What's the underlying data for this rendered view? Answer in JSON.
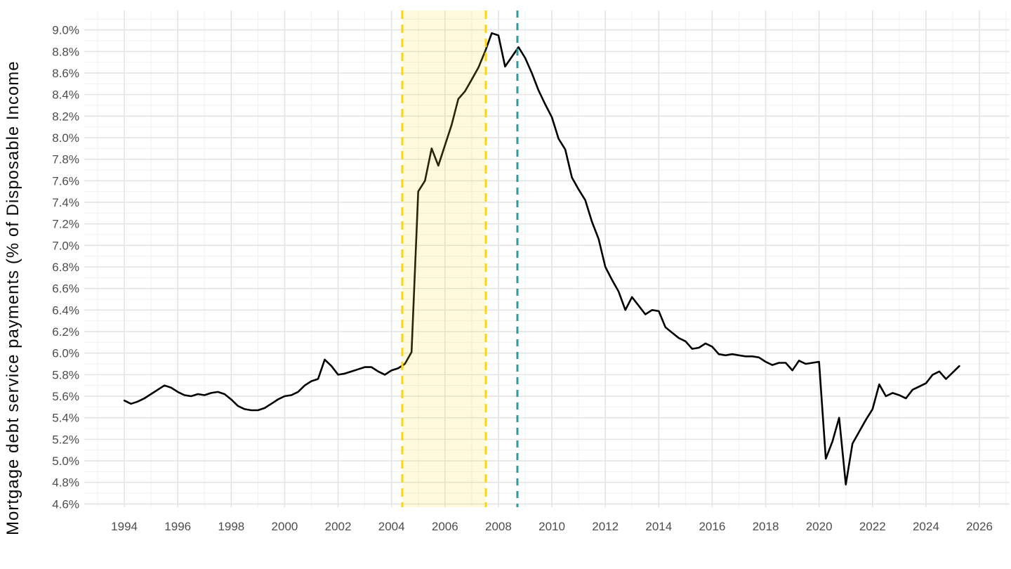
{
  "chart_data": {
    "type": "line",
    "title": "",
    "xlabel": "",
    "ylabel": "Mortgage debt service payments (% of Disposable Income",
    "x_tick_labels": [
      "1994",
      "1996",
      "1998",
      "2000",
      "2002",
      "2004",
      "2006",
      "2008",
      "2010",
      "2012",
      "2014",
      "2016",
      "2018",
      "2020",
      "2022",
      "2024",
      "2026"
    ],
    "x_ticks": [
      1994,
      1996,
      1998,
      2000,
      2002,
      2004,
      2006,
      2008,
      2010,
      2012,
      2014,
      2016,
      2018,
      2020,
      2022,
      2024,
      2026
    ],
    "y_tick_labels": [
      "4.6%",
      "4.8%",
      "5.0%",
      "5.2%",
      "5.4%",
      "5.6%",
      "5.8%",
      "6.0%",
      "6.2%",
      "6.4%",
      "6.6%",
      "6.8%",
      "7.0%",
      "7.2%",
      "7.4%",
      "7.6%",
      "7.8%",
      "8.0%",
      "8.2%",
      "8.4%",
      "8.6%",
      "8.8%",
      "9.0%"
    ],
    "y_ticks": [
      4.6,
      4.8,
      5.0,
      5.2,
      5.4,
      5.6,
      5.8,
      6.0,
      6.2,
      6.4,
      6.6,
      6.8,
      7.0,
      7.2,
      7.4,
      7.6,
      7.8,
      8.0,
      8.2,
      8.4,
      8.6,
      8.8,
      9.0
    ],
    "xlim": [
      1992.5,
      2027.13
    ],
    "ylim": [
      4.57,
      9.18
    ],
    "grid": "major-and-minor, light gray, white background, no axis lines, no tick marks",
    "legend": "none",
    "series": [
      {
        "name": "mortgage-debt-service-ratio",
        "color": "#000000",
        "frequency": "quarterly",
        "x_start": 1994.0,
        "x_step": 0.25,
        "values": [
          5.56,
          5.53,
          5.55,
          5.58,
          5.62,
          5.66,
          5.7,
          5.68,
          5.64,
          5.61,
          5.6,
          5.62,
          5.61,
          5.63,
          5.64,
          5.62,
          5.57,
          5.51,
          5.48,
          5.47,
          5.47,
          5.49,
          5.53,
          5.57,
          5.6,
          5.61,
          5.64,
          5.7,
          5.74,
          5.76,
          5.94,
          5.88,
          5.8,
          5.81,
          5.83,
          5.85,
          5.87,
          5.87,
          5.83,
          5.8,
          5.84,
          5.86,
          5.9,
          6.01,
          7.5,
          7.6,
          7.9,
          7.74,
          7.93,
          8.12,
          8.36,
          8.43,
          8.54,
          8.65,
          8.8,
          8.97,
          8.95,
          8.66,
          8.75,
          8.84,
          8.74,
          8.6,
          8.44,
          8.31,
          8.19,
          7.99,
          7.89,
          7.63,
          7.52,
          7.42,
          7.22,
          7.06,
          6.8,
          6.68,
          6.57,
          6.4,
          6.52,
          6.44,
          6.36,
          6.4,
          6.39,
          6.24,
          6.19,
          6.14,
          6.11,
          6.04,
          6.05,
          6.09,
          6.06,
          5.99,
          5.98,
          5.99,
          5.98,
          5.97,
          5.97,
          5.96,
          5.92,
          5.89,
          5.91,
          5.91,
          5.84,
          5.93,
          5.9,
          5.91,
          5.92,
          5.02,
          5.18,
          5.4,
          4.78,
          5.16,
          5.27,
          5.38,
          5.48,
          5.71,
          5.6,
          5.63,
          5.61,
          5.58,
          5.66,
          5.69,
          5.72,
          5.8,
          5.83,
          5.76,
          5.82,
          5.88
        ]
      }
    ],
    "annotations": {
      "shaded_band": {
        "x_from": 2004.4,
        "x_to": 2007.53,
        "fill_color": "#FFDE33",
        "fill_opacity": 0.16,
        "edge_color": "#FFD700",
        "edge_style": "dashed"
      },
      "vline": {
        "x": 2008.71,
        "color": "#2B9B9B",
        "style": "dashed"
      }
    },
    "colors": {
      "line": "#000000",
      "grid_major": "#E4E4E4",
      "grid_minor": "#F2F2F2",
      "tick_label": "#4D4D4D",
      "axis_title": "#0A0A0A",
      "band_edge_yellow": "#FFD700",
      "event_line_teal": "#2B9B9B"
    }
  }
}
